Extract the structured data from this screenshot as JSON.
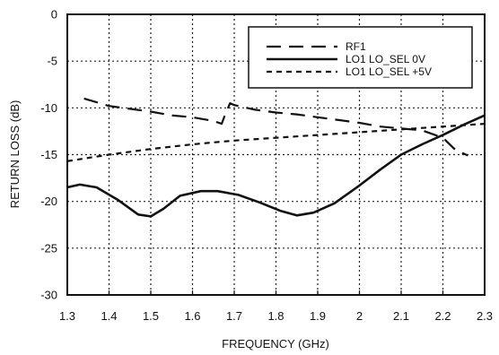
{
  "chart_data": {
    "type": "line",
    "title": "",
    "xlabel": "FREQUENCY (GHz)",
    "ylabel": "RETURN LOSS (dB)",
    "xlim": [
      1.3,
      2.3
    ],
    "ylim": [
      -30,
      0
    ],
    "x_ticks": [
      "1.3",
      "1.4",
      "1.5",
      "1.6",
      "1.7",
      "1.8",
      "1.9",
      "2",
      "2.1",
      "2.2",
      "2.3"
    ],
    "y_ticks": [
      "0",
      "-5",
      "-10",
      "-15",
      "-20",
      "-25",
      "-30"
    ],
    "grid": true,
    "legend_position": "top-right",
    "series": [
      {
        "name": "RF1",
        "style": "long-dash",
        "points": [
          [
            1.34,
            -9.0
          ],
          [
            1.4,
            -9.8
          ],
          [
            1.45,
            -10.1
          ],
          [
            1.5,
            -10.4
          ],
          [
            1.55,
            -10.8
          ],
          [
            1.6,
            -11.0
          ],
          [
            1.65,
            -11.4
          ],
          [
            1.67,
            -11.7
          ],
          [
            1.68,
            -10.5
          ],
          [
            1.69,
            -9.5
          ],
          [
            1.7,
            -9.7
          ],
          [
            1.75,
            -10.2
          ],
          [
            1.8,
            -10.5
          ],
          [
            1.85,
            -10.7
          ],
          [
            1.9,
            -11.0
          ],
          [
            1.95,
            -11.3
          ],
          [
            2.0,
            -11.6
          ],
          [
            2.05,
            -12.0
          ],
          [
            2.1,
            -12.2
          ],
          [
            2.15,
            -12.4
          ],
          [
            2.2,
            -13.2
          ],
          [
            2.23,
            -14.5
          ],
          [
            2.26,
            -15.1
          ]
        ]
      },
      {
        "name": "LO1 LO_SEL 0V",
        "style": "solid",
        "points": [
          [
            1.3,
            -18.5
          ],
          [
            1.33,
            -18.2
          ],
          [
            1.37,
            -18.5
          ],
          [
            1.42,
            -19.8
          ],
          [
            1.47,
            -21.4
          ],
          [
            1.5,
            -21.6
          ],
          [
            1.53,
            -20.8
          ],
          [
            1.57,
            -19.4
          ],
          [
            1.62,
            -18.9
          ],
          [
            1.66,
            -18.9
          ],
          [
            1.71,
            -19.3
          ],
          [
            1.76,
            -20.1
          ],
          [
            1.81,
            -21.0
          ],
          [
            1.85,
            -21.5
          ],
          [
            1.89,
            -21.2
          ],
          [
            1.94,
            -20.2
          ],
          [
            2.0,
            -18.3
          ],
          [
            2.05,
            -16.6
          ],
          [
            2.1,
            -15.0
          ],
          [
            2.15,
            -13.9
          ],
          [
            2.2,
            -12.9
          ],
          [
            2.25,
            -11.8
          ],
          [
            2.3,
            -10.8
          ]
        ]
      },
      {
        "name": "LO1 LO_SEL +5V",
        "style": "short-dash",
        "points": [
          [
            1.3,
            -15.7
          ],
          [
            1.4,
            -15.0
          ],
          [
            1.5,
            -14.4
          ],
          [
            1.6,
            -13.9
          ],
          [
            1.7,
            -13.5
          ],
          [
            1.8,
            -13.2
          ],
          [
            1.9,
            -12.9
          ],
          [
            2.0,
            -12.6
          ],
          [
            2.1,
            -12.3
          ],
          [
            2.2,
            -12.0
          ],
          [
            2.3,
            -11.7
          ]
        ]
      }
    ]
  }
}
